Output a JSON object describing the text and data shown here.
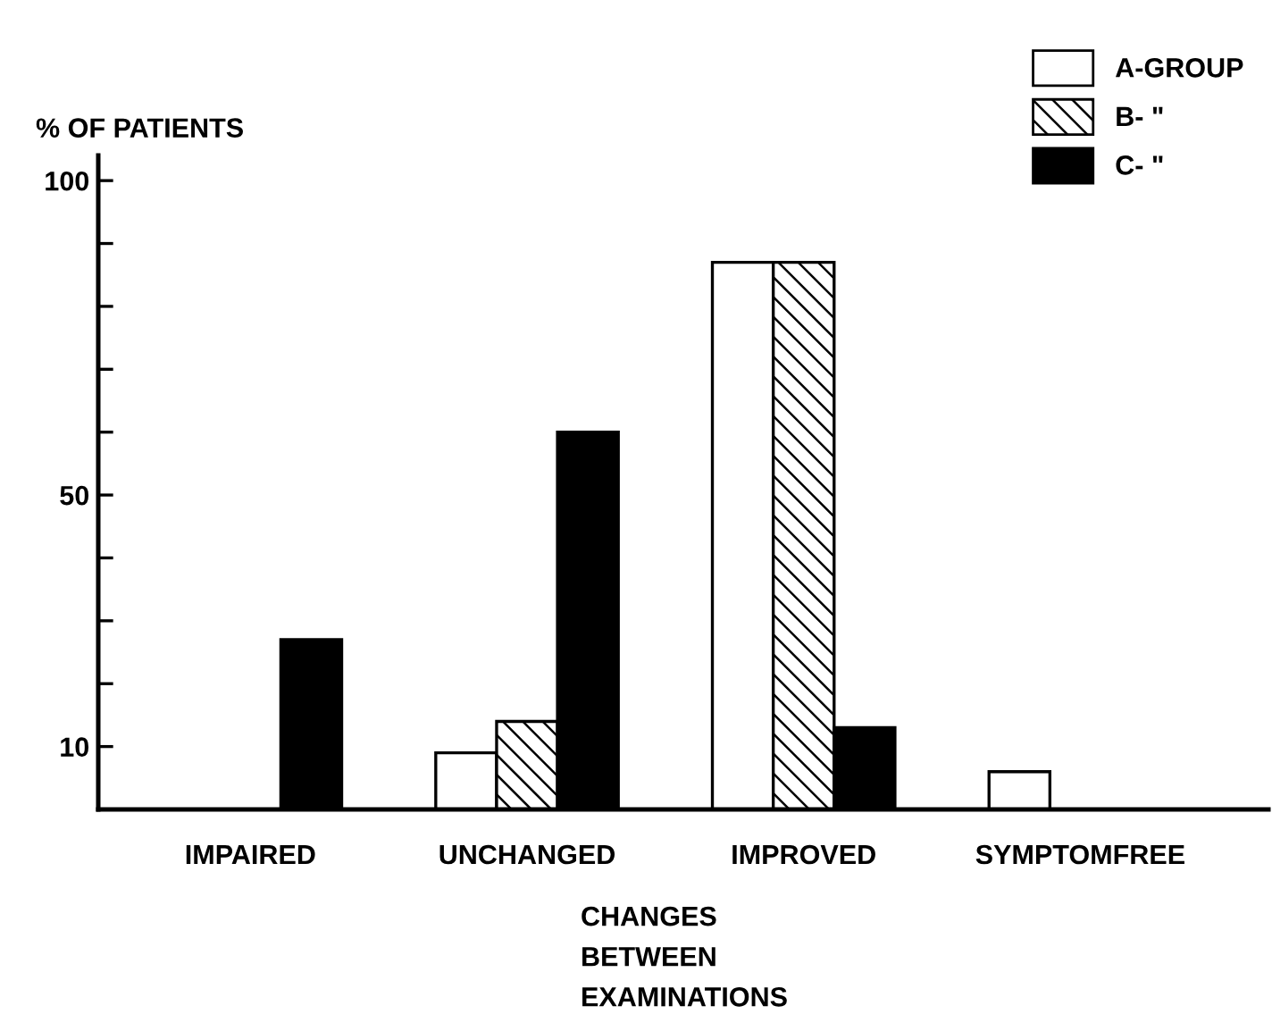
{
  "chart_data": {
    "type": "bar",
    "ylabel": "% OF PATIENTS",
    "xlabel": "CHANGES\nBETWEEN\nEXAMINATIONS",
    "categories": [
      "IMPAIRED",
      "UNCHANGED",
      "IMPROVED",
      "SYMPTOMFREE"
    ],
    "series": [
      {
        "name": "A-GROUP",
        "color": "#ffffff",
        "values": [
          0,
          9,
          87,
          6
        ]
      },
      {
        "name": "B- \"",
        "color": "#000000",
        "values": [
          0,
          14,
          87,
          0
        ]
      },
      {
        "name": "C- \"",
        "color": "#000000",
        "values": [
          27,
          60,
          13,
          0
        ]
      }
    ],
    "ylim": [
      0,
      104
    ],
    "yticks": [
      {
        "value": 10,
        "label": "10"
      },
      {
        "value": 20,
        "label": null
      },
      {
        "value": 30,
        "label": null
      },
      {
        "value": 40,
        "label": null
      },
      {
        "value": 50,
        "label": "50"
      },
      {
        "value": 60,
        "label": null
      },
      {
        "value": 70,
        "label": null
      },
      {
        "value": 80,
        "label": null
      },
      {
        "value": 90,
        "label": null
      },
      {
        "value": 100,
        "label": "100"
      }
    ],
    "grid": false,
    "legend": "top right"
  }
}
